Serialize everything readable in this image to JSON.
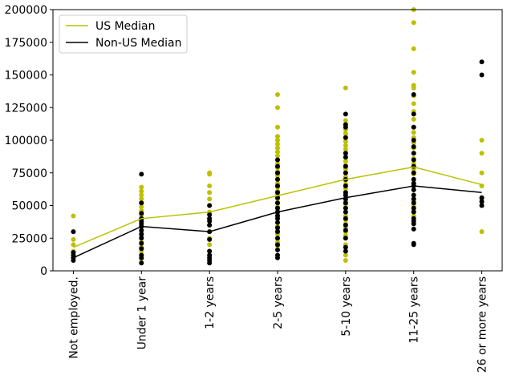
{
  "chart_data": {
    "type": "scatter",
    "title": "",
    "xlabel": "",
    "ylabel": "",
    "ylim": [
      0,
      200000
    ],
    "y_ticks": [
      0,
      25000,
      50000,
      75000,
      100000,
      125000,
      150000,
      175000,
      200000
    ],
    "categories": [
      "Not employed.",
      "Under 1 year",
      "1-2 years",
      "2-5 years",
      "5-10 years",
      "11-25 years",
      "26 or more years"
    ],
    "grid": false,
    "legend": {
      "position": "top-left",
      "entries": [
        "US Median",
        "Non-US Median"
      ]
    },
    "series": [
      {
        "name": "US Median",
        "kind": "line",
        "color": "#bfbf00",
        "values": [
          18000,
          40000,
          45000,
          57500,
          70000,
          79500,
          66000
        ]
      },
      {
        "name": "Non-US Median",
        "kind": "line",
        "color": "#000000",
        "values": [
          10000,
          34000,
          30000,
          45000,
          56000,
          65000,
          60000
        ]
      }
    ],
    "scatter_series": [
      {
        "color": "#bfbf00",
        "points": [
          [
            0,
            42000
          ],
          [
            0,
            24000
          ],
          [
            0,
            20000
          ],
          [
            0,
            15000
          ],
          [
            0,
            12000
          ],
          [
            1,
            64000
          ],
          [
            1,
            61000
          ],
          [
            1,
            58000
          ],
          [
            1,
            55000
          ],
          [
            1,
            52000
          ],
          [
            1,
            49000
          ],
          [
            1,
            46000
          ],
          [
            1,
            43000
          ],
          [
            1,
            40000
          ],
          [
            1,
            37000
          ],
          [
            1,
            34000
          ],
          [
            1,
            30000
          ],
          [
            1,
            26000
          ],
          [
            1,
            22000
          ],
          [
            1,
            18000
          ],
          [
            1,
            15000
          ],
          [
            1,
            12000
          ],
          [
            1,
            9000
          ],
          [
            2,
            75000
          ],
          [
            2,
            74000
          ],
          [
            2,
            65000
          ],
          [
            2,
            60000
          ],
          [
            2,
            55000
          ],
          [
            2,
            50000
          ],
          [
            2,
            45000
          ],
          [
            2,
            40000
          ],
          [
            2,
            35000
          ],
          [
            2,
            30000
          ],
          [
            2,
            25000
          ],
          [
            2,
            20000
          ],
          [
            2,
            15000
          ],
          [
            3,
            135000
          ],
          [
            3,
            125000
          ],
          [
            3,
            110000
          ],
          [
            3,
            103000
          ],
          [
            3,
            100000
          ],
          [
            3,
            97000
          ],
          [
            3,
            94000
          ],
          [
            3,
            91000
          ],
          [
            3,
            88000
          ],
          [
            3,
            85000
          ],
          [
            3,
            82000
          ],
          [
            3,
            79000
          ],
          [
            3,
            76000
          ],
          [
            3,
            73000
          ],
          [
            3,
            70000
          ],
          [
            3,
            67000
          ],
          [
            3,
            64000
          ],
          [
            3,
            61000
          ],
          [
            3,
            58000
          ],
          [
            3,
            55000
          ],
          [
            3,
            52000
          ],
          [
            3,
            49000
          ],
          [
            3,
            46000
          ],
          [
            3,
            43000
          ],
          [
            3,
            40000
          ],
          [
            3,
            37000
          ],
          [
            3,
            34000
          ],
          [
            3,
            31000
          ],
          [
            3,
            28000
          ],
          [
            3,
            25000
          ],
          [
            3,
            22000
          ],
          [
            3,
            19000
          ],
          [
            4,
            140000
          ],
          [
            4,
            115000
          ],
          [
            4,
            112000
          ],
          [
            4,
            108000
          ],
          [
            4,
            105000
          ],
          [
            4,
            102000
          ],
          [
            4,
            99000
          ],
          [
            4,
            96000
          ],
          [
            4,
            93000
          ],
          [
            4,
            90000
          ],
          [
            4,
            87000
          ],
          [
            4,
            84000
          ],
          [
            4,
            81000
          ],
          [
            4,
            78000
          ],
          [
            4,
            75000
          ],
          [
            4,
            72000
          ],
          [
            4,
            69000
          ],
          [
            4,
            66000
          ],
          [
            4,
            63000
          ],
          [
            4,
            60000
          ],
          [
            4,
            57000
          ],
          [
            4,
            54000
          ],
          [
            4,
            51000
          ],
          [
            4,
            48000
          ],
          [
            4,
            45000
          ],
          [
            4,
            42000
          ],
          [
            4,
            39000
          ],
          [
            4,
            36000
          ],
          [
            4,
            33000
          ],
          [
            4,
            30000
          ],
          [
            4,
            27000
          ],
          [
            4,
            20000
          ],
          [
            4,
            12000
          ],
          [
            4,
            8000
          ],
          [
            5,
            200000
          ],
          [
            5,
            190000
          ],
          [
            5,
            170000
          ],
          [
            5,
            152000
          ],
          [
            5,
            142000
          ],
          [
            5,
            140000
          ],
          [
            5,
            134000
          ],
          [
            5,
            128000
          ],
          [
            5,
            122000
          ],
          [
            5,
            116000
          ],
          [
            5,
            110000
          ],
          [
            5,
            106000
          ],
          [
            5,
            102000
          ],
          [
            5,
            98000
          ],
          [
            5,
            94000
          ],
          [
            5,
            90000
          ],
          [
            5,
            86000
          ],
          [
            5,
            82000
          ],
          [
            5,
            78000
          ],
          [
            5,
            74000
          ],
          [
            5,
            70000
          ],
          [
            5,
            66000
          ],
          [
            5,
            62000
          ],
          [
            5,
            58000
          ],
          [
            5,
            54000
          ],
          [
            5,
            50000
          ],
          [
            5,
            46000
          ],
          [
            5,
            42000
          ],
          [
            5,
            38000
          ],
          [
            6,
            100000
          ],
          [
            6,
            90000
          ],
          [
            6,
            75000
          ],
          [
            6,
            65000
          ],
          [
            6,
            55000
          ],
          [
            6,
            50000
          ],
          [
            6,
            30000
          ]
        ]
      },
      {
        "color": "#000000",
        "points": [
          [
            0,
            30000
          ],
          [
            0,
            14000
          ],
          [
            0,
            12000
          ],
          [
            0,
            10000
          ],
          [
            0,
            8000
          ],
          [
            1,
            74000
          ],
          [
            1,
            52000
          ],
          [
            1,
            44000
          ],
          [
            1,
            40000
          ],
          [
            1,
            38000
          ],
          [
            1,
            36000
          ],
          [
            1,
            34000
          ],
          [
            1,
            31000
          ],
          [
            1,
            28000
          ],
          [
            1,
            25000
          ],
          [
            1,
            21000
          ],
          [
            1,
            17000
          ],
          [
            1,
            12000
          ],
          [
            1,
            10000
          ],
          [
            1,
            6000
          ],
          [
            2,
            50000
          ],
          [
            2,
            43000
          ],
          [
            2,
            40000
          ],
          [
            2,
            38000
          ],
          [
            2,
            35000
          ],
          [
            2,
            30000
          ],
          [
            2,
            24000
          ],
          [
            2,
            15000
          ],
          [
            2,
            12000
          ],
          [
            2,
            10000
          ],
          [
            2,
            8000
          ],
          [
            2,
            6000
          ],
          [
            3,
            85000
          ],
          [
            3,
            80000
          ],
          [
            3,
            75000
          ],
          [
            3,
            70000
          ],
          [
            3,
            65000
          ],
          [
            3,
            60000
          ],
          [
            3,
            56000
          ],
          [
            3,
            52000
          ],
          [
            3,
            48000
          ],
          [
            3,
            45000
          ],
          [
            3,
            42000
          ],
          [
            3,
            40000
          ],
          [
            3,
            37000
          ],
          [
            3,
            33000
          ],
          [
            3,
            30000
          ],
          [
            3,
            25000
          ],
          [
            3,
            20000
          ],
          [
            3,
            16000
          ],
          [
            3,
            12000
          ],
          [
            3,
            10000
          ],
          [
            4,
            120000
          ],
          [
            4,
            112000
          ],
          [
            4,
            110000
          ],
          [
            4,
            102000
          ],
          [
            4,
            90000
          ],
          [
            4,
            87000
          ],
          [
            4,
            80000
          ],
          [
            4,
            75000
          ],
          [
            4,
            70000
          ],
          [
            4,
            65000
          ],
          [
            4,
            60000
          ],
          [
            4,
            58000
          ],
          [
            4,
            55000
          ],
          [
            4,
            52000
          ],
          [
            4,
            48000
          ],
          [
            4,
            45000
          ],
          [
            4,
            40000
          ],
          [
            4,
            35000
          ],
          [
            4,
            31000
          ],
          [
            4,
            25000
          ],
          [
            4,
            18000
          ],
          [
            4,
            15000
          ],
          [
            5,
            135000
          ],
          [
            5,
            120000
          ],
          [
            5,
            110000
          ],
          [
            5,
            100000
          ],
          [
            5,
            95000
          ],
          [
            5,
            90000
          ],
          [
            5,
            85000
          ],
          [
            5,
            80000
          ],
          [
            5,
            75000
          ],
          [
            5,
            70000
          ],
          [
            5,
            67000
          ],
          [
            5,
            65000
          ],
          [
            5,
            62000
          ],
          [
            5,
            58000
          ],
          [
            5,
            55000
          ],
          [
            5,
            52000
          ],
          [
            5,
            48000
          ],
          [
            5,
            45000
          ],
          [
            5,
            40000
          ],
          [
            5,
            38000
          ],
          [
            5,
            36000
          ],
          [
            5,
            32000
          ],
          [
            5,
            21000
          ],
          [
            5,
            20000
          ],
          [
            6,
            160000
          ],
          [
            6,
            150000
          ],
          [
            6,
            56000
          ],
          [
            6,
            53000
          ],
          [
            6,
            50000
          ]
        ]
      }
    ]
  }
}
